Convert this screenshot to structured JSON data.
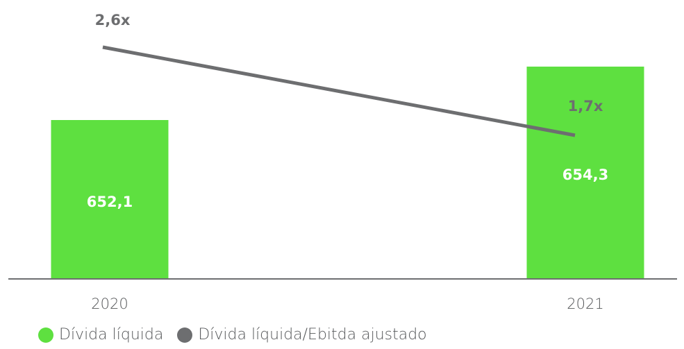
{
  "colors": {
    "bar": "#5ee040",
    "line": "#6d6e70",
    "axis": "#6d6e70"
  },
  "chart_data": {
    "type": "bar",
    "categories": [
      "2020",
      "2021"
    ],
    "series": [
      {
        "name": "Dívida líquida",
        "type": "bar",
        "values": [
          652.1,
          654.3
        ],
        "labels": [
          "652,1",
          "654,3"
        ]
      },
      {
        "name": "Dívida líquida/Ebitda ajustado",
        "type": "line",
        "values": [
          2.6,
          1.7
        ],
        "labels": [
          "2,6x",
          "1,7x"
        ]
      }
    ],
    "legend_position": "bottom-left",
    "grid": false
  },
  "legend": {
    "items": [
      {
        "label": "Dívida líquida",
        "color": "#5ee040"
      },
      {
        "label": "Dívida líquida/Ebitda ajustado",
        "color": "#6d6e70"
      }
    ]
  }
}
